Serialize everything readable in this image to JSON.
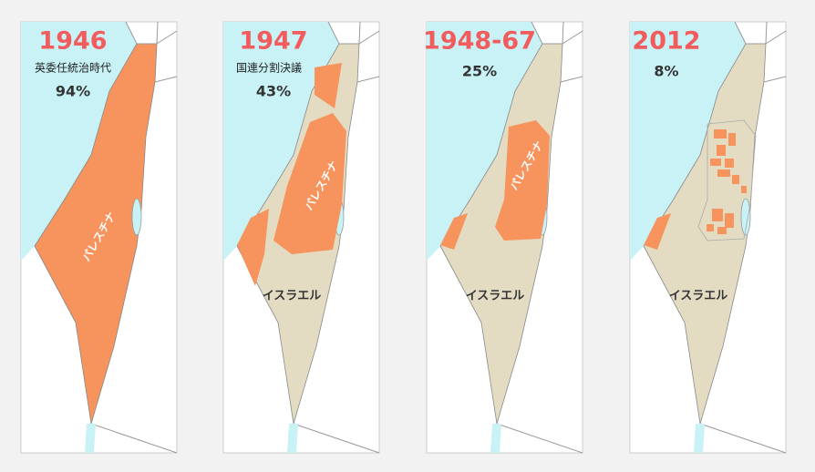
{
  "panels": [
    {
      "year": "1946",
      "subtitle": "英委任統治時代",
      "percent": "94%",
      "palestine_label": "パレスチナ"
    },
    {
      "year": "1947",
      "subtitle": "国連分割決議",
      "percent": "43%",
      "palestine_label": "パレスチナ",
      "israel_label": "イスラエル"
    },
    {
      "year": "1948-67",
      "percent": "25%",
      "palestine_label": "パレスチナ",
      "israel_label": "イスラエル"
    },
    {
      "year": "2012",
      "percent": "8%",
      "israel_label": "イスラエル"
    }
  ]
}
